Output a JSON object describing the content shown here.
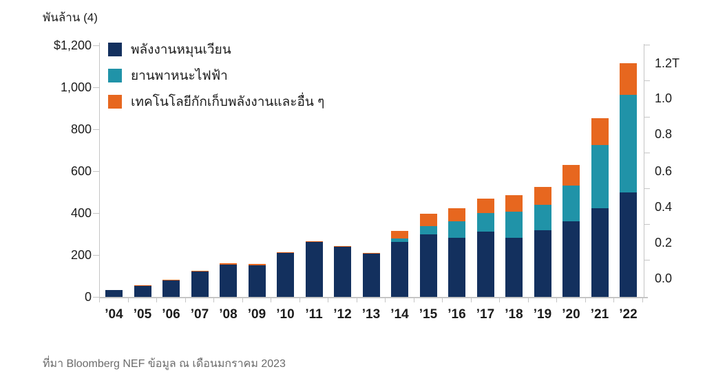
{
  "chart": {
    "title": "พันล้าน (4)",
    "source": "ที่มา Bloomberg NEF ข้อมูล ณ เดือนมกราคม 2023"
  },
  "chart_data": {
    "type": "bar",
    "stacked": true,
    "title": "พันล้าน (4)",
    "grid": false,
    "legend_position": "top-left-inside",
    "categories": [
      "’04",
      "’05",
      "’06",
      "’07",
      "’08",
      "’09",
      "’10",
      "’11",
      "’12",
      "’13",
      "’14",
      "’15",
      "’16",
      "’17",
      "’18",
      "’19",
      "’20",
      "’21",
      "’22"
    ],
    "series": [
      {
        "key": "renewables",
        "name": "พลังงานหมุนเวียน",
        "color": "#13305e",
        "values": [
          33,
          53,
          79,
          120,
          155,
          151,
          209,
          262,
          238,
          207,
          262,
          299,
          282,
          312,
          283,
          318,
          362,
          422,
          498
        ]
      },
      {
        "key": "electric-vehicles",
        "name": "ยานพาหนะไฟฟ้า",
        "color": "#2093a8",
        "values": [
          0,
          0,
          0,
          0,
          0,
          0,
          0,
          0,
          0,
          0,
          18,
          38,
          80,
          88,
          125,
          122,
          169,
          304,
          465
        ]
      },
      {
        "key": "storage-and-other",
        "name": "เทคโนโลยีกักเก็บพลังงานและอื่น ๆ",
        "color": "#e7671f",
        "values": [
          0,
          3,
          4,
          4,
          5,
          5,
          5,
          5,
          4,
          4,
          36,
          60,
          60,
          69,
          76,
          86,
          99,
          125,
          153
        ]
      }
    ],
    "totals": [
      33,
      56,
      83,
      124,
      160,
      156,
      214,
      267,
      242,
      211,
      316,
      397,
      422,
      469,
      484,
      526,
      630,
      851,
      1116
    ],
    "y_axis_left": {
      "unit": "billion USD",
      "range": [
        0,
        1200
      ],
      "tick_values": [
        1200,
        1000,
        800,
        600,
        400,
        200,
        0
      ],
      "tick_labels": [
        "$1,200",
        "1,000",
        "800",
        "600",
        "400",
        "200",
        "0"
      ]
    },
    "y_axis_right": {
      "unit": "trillion USD",
      "tick_labels": [
        "1.2T",
        "1.0",
        "0.8",
        "0.6",
        "0.4",
        "0.2",
        "0.0"
      ]
    }
  },
  "colors": {
    "background": "#ffffff",
    "axis": "#c5c5c5",
    "text": "#1c1c1c",
    "source_text": "#6b6b6b"
  }
}
